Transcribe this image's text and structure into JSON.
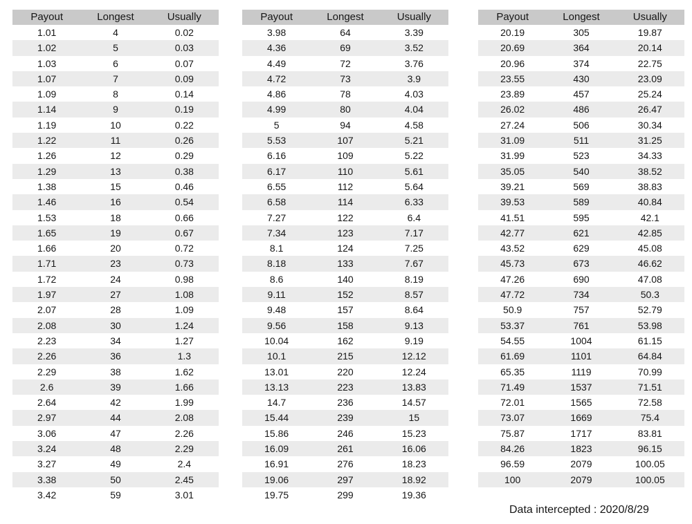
{
  "colors": {
    "page-bg": "#ffffff",
    "header-bg": "#c9c9c9",
    "row-alt-bg": "#ebebeb",
    "text": "#161616"
  },
  "footer": {
    "note": "Data intercepted : 2020/8/29"
  },
  "chart_data": [
    {
      "type": "table",
      "columns": [
        "Payout",
        "Longest",
        "Usually"
      ],
      "rows": [
        [
          "1.01",
          "4",
          "0.02"
        ],
        [
          "1.02",
          "5",
          "0.03"
        ],
        [
          "1.03",
          "6",
          "0.07"
        ],
        [
          "1.07",
          "7",
          "0.09"
        ],
        [
          "1.09",
          "8",
          "0.14"
        ],
        [
          "1.14",
          "9",
          "0.19"
        ],
        [
          "1.19",
          "10",
          "0.22"
        ],
        [
          "1.22",
          "11",
          "0.26"
        ],
        [
          "1.26",
          "12",
          "0.29"
        ],
        [
          "1.29",
          "13",
          "0.38"
        ],
        [
          "1.38",
          "15",
          "0.46"
        ],
        [
          "1.46",
          "16",
          "0.54"
        ],
        [
          "1.53",
          "18",
          "0.66"
        ],
        [
          "1.65",
          "19",
          "0.67"
        ],
        [
          "1.66",
          "20",
          "0.72"
        ],
        [
          "1.71",
          "23",
          "0.73"
        ],
        [
          "1.72",
          "24",
          "0.98"
        ],
        [
          "1.97",
          "27",
          "1.08"
        ],
        [
          "2.07",
          "28",
          "1.09"
        ],
        [
          "2.08",
          "30",
          "1.24"
        ],
        [
          "2.23",
          "34",
          "1.27"
        ],
        [
          "2.26",
          "36",
          "1.3"
        ],
        [
          "2.29",
          "38",
          "1.62"
        ],
        [
          "2.6",
          "39",
          "1.66"
        ],
        [
          "2.64",
          "42",
          "1.99"
        ],
        [
          "2.97",
          "44",
          "2.08"
        ],
        [
          "3.06",
          "47",
          "2.26"
        ],
        [
          "3.24",
          "48",
          "2.29"
        ],
        [
          "3.27",
          "49",
          "2.4"
        ],
        [
          "3.38",
          "50",
          "2.45"
        ],
        [
          "3.42",
          "59",
          "3.01"
        ]
      ]
    },
    {
      "type": "table",
      "columns": [
        "Payout",
        "Longest",
        "Usually"
      ],
      "rows": [
        [
          "3.98",
          "64",
          "3.39"
        ],
        [
          "4.36",
          "69",
          "3.52"
        ],
        [
          "4.49",
          "72",
          "3.76"
        ],
        [
          "4.72",
          "73",
          "3.9"
        ],
        [
          "4.86",
          "78",
          "4.03"
        ],
        [
          "4.99",
          "80",
          "4.04"
        ],
        [
          "5",
          "94",
          "4.58"
        ],
        [
          "5.53",
          "107",
          "5.21"
        ],
        [
          "6.16",
          "109",
          "5.22"
        ],
        [
          "6.17",
          "110",
          "5.61"
        ],
        [
          "6.55",
          "112",
          "5.64"
        ],
        [
          "6.58",
          "114",
          "6.33"
        ],
        [
          "7.27",
          "122",
          "6.4"
        ],
        [
          "7.34",
          "123",
          "7.17"
        ],
        [
          "8.1",
          "124",
          "7.25"
        ],
        [
          "8.18",
          "133",
          "7.67"
        ],
        [
          "8.6",
          "140",
          "8.19"
        ],
        [
          "9.11",
          "152",
          "8.57"
        ],
        [
          "9.48",
          "157",
          "8.64"
        ],
        [
          "9.56",
          "158",
          "9.13"
        ],
        [
          "10.04",
          "162",
          "9.19"
        ],
        [
          "10.1",
          "215",
          "12.12"
        ],
        [
          "13.01",
          "220",
          "12.24"
        ],
        [
          "13.13",
          "223",
          "13.83"
        ],
        [
          "14.7",
          "236",
          "14.57"
        ],
        [
          "15.44",
          "239",
          "15"
        ],
        [
          "15.86",
          "246",
          "15.23"
        ],
        [
          "16.09",
          "261",
          "16.06"
        ],
        [
          "16.91",
          "276",
          "18.23"
        ],
        [
          "19.06",
          "297",
          "18.92"
        ],
        [
          "19.75",
          "299",
          "19.36"
        ]
      ]
    },
    {
      "type": "table",
      "columns": [
        "Payout",
        "Longest",
        "Usually"
      ],
      "rows": [
        [
          "20.19",
          "305",
          "19.87"
        ],
        [
          "20.69",
          "364",
          "20.14"
        ],
        [
          "20.96",
          "374",
          "22.75"
        ],
        [
          "23.55",
          "430",
          "23.09"
        ],
        [
          "23.89",
          "457",
          "25.24"
        ],
        [
          "26.02",
          "486",
          "26.47"
        ],
        [
          "27.24",
          "506",
          "30.34"
        ],
        [
          "31.09",
          "511",
          "31.25"
        ],
        [
          "31.99",
          "523",
          "34.33"
        ],
        [
          "35.05",
          "540",
          "38.52"
        ],
        [
          "39.21",
          "569",
          "38.83"
        ],
        [
          "39.53",
          "589",
          "40.84"
        ],
        [
          "41.51",
          "595",
          "42.1"
        ],
        [
          "42.77",
          "621",
          "42.85"
        ],
        [
          "43.52",
          "629",
          "45.08"
        ],
        [
          "45.73",
          "673",
          "46.62"
        ],
        [
          "47.26",
          "690",
          "47.08"
        ],
        [
          "47.72",
          "734",
          "50.3"
        ],
        [
          "50.9",
          "757",
          "52.79"
        ],
        [
          "53.37",
          "761",
          "53.98"
        ],
        [
          "54.55",
          "1004",
          "61.15"
        ],
        [
          "61.69",
          "1101",
          "64.84"
        ],
        [
          "65.35",
          "1119",
          "70.99"
        ],
        [
          "71.49",
          "1537",
          "71.51"
        ],
        [
          "72.01",
          "1565",
          "72.58"
        ],
        [
          "73.07",
          "1669",
          "75.4"
        ],
        [
          "75.87",
          "1717",
          "83.81"
        ],
        [
          "84.26",
          "1823",
          "96.15"
        ],
        [
          "96.59",
          "2079",
          "100.05"
        ],
        [
          "100",
          "2079",
          "100.05"
        ]
      ]
    }
  ]
}
